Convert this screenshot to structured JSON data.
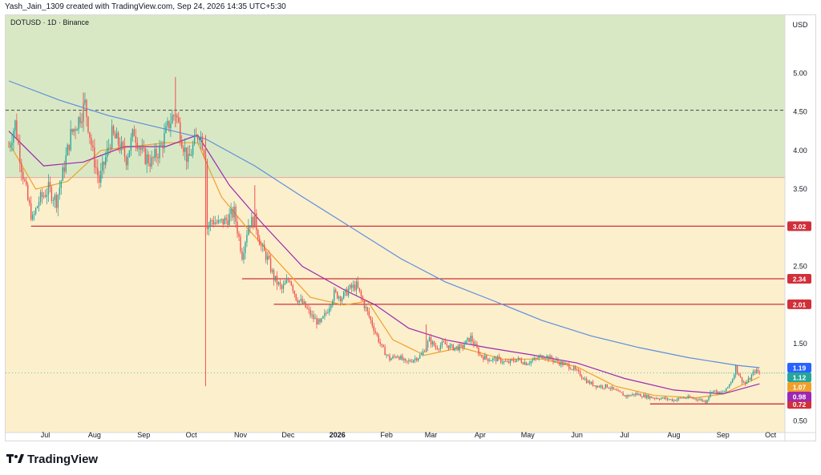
{
  "header": {
    "text": "Yash_Jain_1309 created with TradingView.com, Sep 24, 2026 14:35 UTC+5:30"
  },
  "footer": {
    "brand": "TradingView",
    "logo_icon": "tradingview-logo-icon"
  },
  "colors": {
    "zone_upper": "#d9e8c4",
    "zone_lower": "#fcefcc",
    "candle_up": "#26a69a",
    "candle_down": "#ef5350",
    "ma_short": "#f0a02a",
    "ma_mid": "#9c27b0",
    "ma_long": "#5b8fdf",
    "level_line": "#d0303a"
  },
  "chart_data": {
    "type": "candlestick",
    "title": "DOTUSD · 1D · Binance",
    "currency_label": "USD",
    "y_axis": {
      "ticks": [
        5.0,
        4.5,
        4.0,
        3.5,
        3.0,
        2.5,
        2.0,
        1.5,
        1.0,
        0.5
      ],
      "tick_labels": [
        "5.00",
        "4.50",
        "4.00",
        "3.50",
        "3.00",
        "2.50",
        "2.00",
        "1.50",
        "1.00",
        "0.50"
      ],
      "range": [
        0.35,
        5.75
      ]
    },
    "x_axis": {
      "tick_labels": [
        "Jul",
        "Aug",
        "Sep",
        "Oct",
        "Nov",
        "Dec",
        "2026",
        "Feb",
        "Mar",
        "Apr",
        "May",
        "Jun",
        "Jul",
        "Aug",
        "Sep",
        "Oct"
      ],
      "bold_labels": [
        "2026"
      ]
    },
    "zones": [
      {
        "name": "upper-zone",
        "from": 3.65,
        "to": 5.75,
        "color": "#d9e8c4"
      },
      {
        "name": "lower-zone",
        "from": 0.35,
        "to": 3.65,
        "color": "#fcefcc"
      }
    ],
    "dashed_level": 4.52,
    "horizontal_levels": [
      {
        "value": 3.02,
        "label": "3.02",
        "start": "Jun 22, 2025"
      },
      {
        "value": 2.34,
        "label": "2.34",
        "start": "Nov 2, 2025"
      },
      {
        "value": 2.01,
        "label": "2.01",
        "start": "Nov 22, 2025"
      },
      {
        "value": 0.72,
        "label": "0.72",
        "start": "Jul 17, 2026"
      }
    ],
    "price_tags": [
      {
        "label": "1.19",
        "value": 1.19,
        "color": "#2962ff"
      },
      {
        "label": "1.12",
        "value": 1.12,
        "color": "#26a69a"
      },
      {
        "label": "1.07",
        "value": 1.07,
        "color": "#f0a02a"
      },
      {
        "label": "0.98",
        "value": 0.98,
        "color": "#9c27b0"
      }
    ],
    "price_path": [
      [
        "Jun 08, 2025",
        4.05
      ],
      [
        "Jun 12, 2025",
        4.35
      ],
      [
        "Jun 16, 2025",
        3.8
      ],
      [
        "Jun 20, 2025",
        3.35
      ],
      [
        "Jun 23, 2025",
        3.1
      ],
      [
        "Jun 27, 2025",
        3.35
      ],
      [
        "Jul 03, 2025",
        3.5
      ],
      [
        "Jul 08, 2025",
        3.35
      ],
      [
        "Jul 12, 2025",
        3.7
      ],
      [
        "Jul 17, 2025",
        4.2
      ],
      [
        "Jul 22, 2025",
        4.4
      ],
      [
        "Jul 26, 2025",
        4.6
      ],
      [
        "Jul 31, 2025",
        3.95
      ],
      [
        "Aug 04, 2025",
        3.6
      ],
      [
        "Aug 08, 2025",
        3.9
      ],
      [
        "Aug 12, 2025",
        4.2
      ],
      [
        "Aug 16, 2025",
        4.1
      ],
      [
        "Aug 21, 2025",
        3.9
      ],
      [
        "Aug 26, 2025",
        4.25
      ],
      [
        "Aug 31, 2025",
        3.95
      ],
      [
        "Sep 06, 2025",
        3.85
      ],
      [
        "Sep 12, 2025",
        4.05
      ],
      [
        "Sep 17, 2025",
        4.35
      ],
      [
        "Sep 21, 2025",
        4.5
      ],
      [
        "Sep 25, 2025",
        4.15
      ],
      [
        "Sep 29, 2025",
        3.85
      ],
      [
        "Oct 02, 2025",
        4.05
      ],
      [
        "Oct 06, 2025",
        4.25
      ],
      [
        "Oct 10, 2025",
        3.95
      ],
      [
        "Oct 11, 2025",
        3.0
      ],
      [
        "Oct 14, 2025",
        3.1
      ],
      [
        "Oct 18, 2025",
        3.05
      ],
      [
        "Oct 23, 2025",
        3.1
      ],
      [
        "Oct 28, 2025",
        3.2
      ],
      [
        "Nov 02, 2025",
        2.65
      ],
      [
        "Nov 06, 2025",
        3.05
      ],
      [
        "Nov 10, 2025",
        3.1
      ],
      [
        "Nov 14, 2025",
        2.75
      ],
      [
        "Nov 18, 2025",
        2.6
      ],
      [
        "Nov 22, 2025",
        2.35
      ],
      [
        "Nov 27, 2025",
        2.2
      ],
      [
        "Dec 02, 2025",
        2.35
      ],
      [
        "Dec 06, 2025",
        2.1
      ],
      [
        "Dec 11, 2025",
        2.0
      ],
      [
        "Dec 16, 2025",
        1.85
      ],
      [
        "Dec 21, 2025",
        1.75
      ],
      [
        "Dec 25, 2025",
        1.9
      ],
      [
        "Dec 30, 2025",
        2.15
      ],
      [
        "Jan 04, 2026",
        2.1
      ],
      [
        "Jan 08, 2026",
        2.2
      ],
      [
        "Jan 13, 2026",
        2.25
      ],
      [
        "Jan 17, 2026",
        2.05
      ],
      [
        "Jan 21, 2026",
        1.85
      ],
      [
        "Jan 25, 2026",
        1.65
      ],
      [
        "Jan 29, 2026",
        1.45
      ],
      [
        "Feb 03, 2026",
        1.3
      ],
      [
        "Feb 08, 2026",
        1.35
      ],
      [
        "Feb 13, 2026",
        1.25
      ],
      [
        "Feb 18, 2026",
        1.3
      ],
      [
        "Feb 23, 2026",
        1.35
      ],
      [
        "Feb 28, 2026",
        1.55
      ],
      [
        "Mar 04, 2026",
        1.45
      ],
      [
        "Mar 09, 2026",
        1.5
      ],
      [
        "Mar 14, 2026",
        1.45
      ],
      [
        "Mar 20, 2026",
        1.45
      ],
      [
        "Mar 26, 2026",
        1.58
      ],
      [
        "Apr 01, 2026",
        1.35
      ],
      [
        "Apr 06, 2026",
        1.3
      ],
      [
        "Apr 12, 2026",
        1.3
      ],
      [
        "Apr 18, 2026",
        1.25
      ],
      [
        "Apr 24, 2026",
        1.3
      ],
      [
        "Apr 30, 2026",
        1.25
      ],
      [
        "May 06, 2026",
        1.3
      ],
      [
        "May 11, 2026",
        1.35
      ],
      [
        "May 16, 2026",
        1.3
      ],
      [
        "May 22, 2026",
        1.25
      ],
      [
        "May 28, 2026",
        1.2
      ],
      [
        "Jun 03, 2026",
        1.1
      ],
      [
        "Jun 08, 2026",
        1.0
      ],
      [
        "Jun 14, 2026",
        0.95
      ],
      [
        "Jun 20, 2026",
        0.95
      ],
      [
        "Jun 26, 2026",
        0.88
      ],
      [
        "Jul 02, 2026",
        0.82
      ],
      [
        "Jul 08, 2026",
        0.85
      ],
      [
        "Jul 14, 2026",
        0.82
      ],
      [
        "Jul 20, 2026",
        0.8
      ],
      [
        "Jul 26, 2026",
        0.79
      ],
      [
        "Aug 01, 2026",
        0.77
      ],
      [
        "Aug 06, 2026",
        0.8
      ],
      [
        "Aug 11, 2026",
        0.8
      ],
      [
        "Aug 17, 2026",
        0.78
      ],
      [
        "Aug 21, 2026",
        0.75
      ],
      [
        "Aug 25, 2026",
        0.9
      ],
      [
        "Aug 30, 2026",
        0.85
      ],
      [
        "Sep 03, 2026",
        0.9
      ],
      [
        "Sep 07, 2026",
        1.05
      ],
      [
        "Sep 09, 2026",
        1.2
      ],
      [
        "Sep 12, 2026",
        1.05
      ],
      [
        "Sep 15, 2026",
        0.98
      ],
      [
        "Sep 18, 2026",
        1.05
      ],
      [
        "Sep 21, 2026",
        1.15
      ],
      [
        "Sep 24, 2026",
        1.12
      ]
    ],
    "wicks": [
      {
        "date": "Oct 10, 2025",
        "high": 4.2,
        "low": 0.95
      },
      {
        "date": "Sep 21, 2025",
        "high": 4.95,
        "low": 4.3
      },
      {
        "date": "Jul 25, 2025",
        "high": 4.75,
        "low": 4.3
      },
      {
        "date": "Nov 10, 2025",
        "high": 3.55,
        "low": 3.0
      },
      {
        "date": "Feb 26, 2026",
        "high": 1.75,
        "low": 1.4
      }
    ],
    "moving_averages": [
      {
        "name": "ma-short",
        "color": "#f0a02a",
        "points": [
          [
            "Jun 08, 2025",
            4.1
          ],
          [
            "Jun 25, 2025",
            3.5
          ],
          [
            "Jul 15, 2025",
            3.6
          ],
          [
            "Aug 05, 2025",
            4.0
          ],
          [
            "Aug 25, 2025",
            4.05
          ],
          [
            "Sep 15, 2025",
            4.1
          ],
          [
            "Oct 05, 2025",
            4.1
          ],
          [
            "Oct 20, 2025",
            3.4
          ],
          [
            "Nov 05, 2025",
            3.0
          ],
          [
            "Nov 25, 2025",
            2.55
          ],
          [
            "Dec 15, 2025",
            2.1
          ],
          [
            "Jan 05, 2026",
            2.0
          ],
          [
            "Jan 20, 2026",
            2.05
          ],
          [
            "Feb 05, 2026",
            1.55
          ],
          [
            "Feb 25, 2026",
            1.35
          ],
          [
            "Mar 20, 2026",
            1.45
          ],
          [
            "Apr 15, 2026",
            1.3
          ],
          [
            "May 10, 2026",
            1.3
          ],
          [
            "Jun 01, 2026",
            1.2
          ],
          [
            "Jun 25, 2026",
            0.95
          ],
          [
            "Jul 20, 2026",
            0.83
          ],
          [
            "Aug 15, 2026",
            0.8
          ],
          [
            "Sep 01, 2026",
            0.85
          ],
          [
            "Sep 24, 2026",
            1.07
          ]
        ]
      },
      {
        "name": "ma-mid",
        "color": "#9c27b0",
        "points": [
          [
            "Jun 08, 2025",
            4.25
          ],
          [
            "Jun 30, 2025",
            3.8
          ],
          [
            "Jul 25, 2025",
            3.85
          ],
          [
            "Aug 20, 2025",
            4.05
          ],
          [
            "Sep 15, 2025",
            4.05
          ],
          [
            "Oct 05, 2025",
            4.2
          ],
          [
            "Oct 25, 2025",
            3.55
          ],
          [
            "Nov 15, 2025",
            3.05
          ],
          [
            "Dec 10, 2025",
            2.5
          ],
          [
            "Jan 05, 2026",
            2.2
          ],
          [
            "Jan 25, 2026",
            2.0
          ],
          [
            "Feb 15, 2026",
            1.7
          ],
          [
            "Mar 10, 2026",
            1.55
          ],
          [
            "Apr 05, 2026",
            1.45
          ],
          [
            "May 05, 2026",
            1.35
          ],
          [
            "Jun 01, 2026",
            1.25
          ],
          [
            "Jul 01, 2026",
            1.05
          ],
          [
            "Aug 01, 2026",
            0.9
          ],
          [
            "Sep 01, 2026",
            0.85
          ],
          [
            "Sep 24, 2026",
            0.98
          ]
        ]
      },
      {
        "name": "ma-long",
        "color": "#5b8fdf",
        "points": [
          [
            "Jun 08, 2025",
            4.9
          ],
          [
            "Jul 10, 2025",
            4.65
          ],
          [
            "Aug 10, 2025",
            4.45
          ],
          [
            "Sep 10, 2025",
            4.3
          ],
          [
            "Oct 10, 2025",
            4.15
          ],
          [
            "Nov 10, 2025",
            3.8
          ],
          [
            "Dec 10, 2025",
            3.4
          ],
          [
            "Jan 10, 2026",
            3.0
          ],
          [
            "Feb 10, 2026",
            2.6
          ],
          [
            "Mar 10, 2026",
            2.3
          ],
          [
            "Apr 10, 2026",
            2.05
          ],
          [
            "May 10, 2026",
            1.8
          ],
          [
            "Jun 10, 2026",
            1.6
          ],
          [
            "Jul 10, 2026",
            1.45
          ],
          [
            "Aug 10, 2026",
            1.32
          ],
          [
            "Sep 10, 2026",
            1.22
          ],
          [
            "Sep 24, 2026",
            1.19
          ]
        ]
      }
    ],
    "grid": false,
    "legend": "none"
  }
}
